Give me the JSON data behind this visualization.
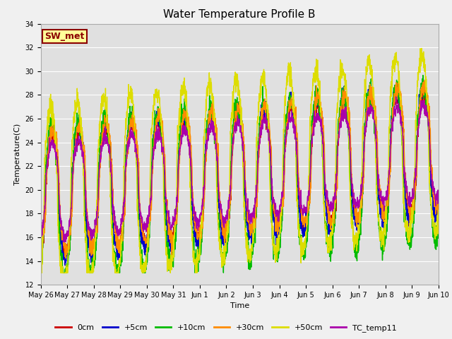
{
  "title": "Water Temperature Profile B",
  "xlabel": "Time",
  "ylabel": "Temperature(C)",
  "ylim": [
    12,
    34
  ],
  "annotation_text": "SW_met",
  "annotation_bg": "#FFFF99",
  "annotation_border": "#8B0000",
  "lines": [
    {
      "label": "0cm",
      "color": "#CC0000",
      "lw": 1.0
    },
    {
      "label": "+5cm",
      "color": "#0000CC",
      "lw": 1.0
    },
    {
      "label": "+10cm",
      "color": "#00BB00",
      "lw": 1.0
    },
    {
      "label": "+30cm",
      "color": "#FF8C00",
      "lw": 1.0
    },
    {
      "label": "+50cm",
      "color": "#DDDD00",
      "lw": 1.0
    },
    {
      "label": "TC_temp11",
      "color": "#AA00AA",
      "lw": 1.0
    }
  ],
  "tick_labels": [
    "May 26",
    "May 27",
    "May 28",
    "May 29",
    "May 30",
    "May 31",
    "Jun 1",
    "Jun 2",
    "Jun 3",
    "Jun 4",
    "Jun 5",
    "Jun 6",
    "Jun 7",
    "Jun 8",
    "Jun 9",
    "Jun 10"
  ],
  "n_days": 15,
  "bg_color": "#F0F0F0",
  "plot_bg": "#E0E0E0",
  "grid_color": "#FFFFFF",
  "title_fontsize": 11,
  "axis_fontsize": 8,
  "tick_fontsize": 7,
  "legend_fontsize": 8
}
